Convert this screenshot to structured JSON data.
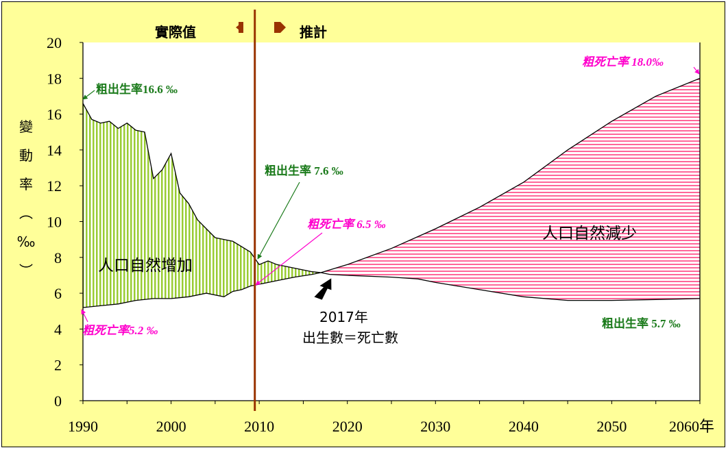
{
  "chart_data": {
    "type": "area",
    "xlim": [
      1990,
      2060
    ],
    "ylim": [
      0,
      20
    ],
    "x_ticks": [
      "1990",
      "2000",
      "2010",
      "2020",
      "2030",
      "2040",
      "2050",
      "2060"
    ],
    "x_unit": "年",
    "y_ticks": [
      "0",
      "2",
      "4",
      "6",
      "8",
      "10",
      "12",
      "14",
      "16",
      "18",
      "20"
    ],
    "ylabel": [
      "變",
      "動",
      "率",
      "︵",
      "‰",
      "︶"
    ],
    "legend": {
      "actual": "實際值",
      "projected": "推計"
    },
    "divider_year": 2009.5,
    "series": [
      {
        "name": "粗出生率",
        "x": [
          1990,
          1991,
          1992,
          1993,
          1994,
          1995,
          1996,
          1997,
          1998,
          1999,
          2000,
          2001,
          2002,
          2003,
          2004,
          2005,
          2006,
          2007,
          2008,
          2009,
          2010,
          2011,
          2012,
          2013,
          2014,
          2015,
          2016,
          2017,
          2018,
          2020,
          2025,
          2028,
          2030,
          2035,
          2040,
          2045,
          2050,
          2055,
          2060
        ],
        "values": [
          16.6,
          15.7,
          15.5,
          15.6,
          15.2,
          15.5,
          15.1,
          15.0,
          12.4,
          12.9,
          13.8,
          11.6,
          11.0,
          10.1,
          9.6,
          9.1,
          9.0,
          8.9,
          8.6,
          8.3,
          7.6,
          7.8,
          7.6,
          7.5,
          7.4,
          7.3,
          7.2,
          7.15,
          7.05,
          7.0,
          6.9,
          6.8,
          6.6,
          6.2,
          5.8,
          5.6,
          5.6,
          5.65,
          5.7
        ]
      },
      {
        "name": "粗死亡率",
        "x": [
          1990,
          1992,
          1994,
          1996,
          1998,
          2000,
          2002,
          2004,
          2006,
          2007,
          2008,
          2009,
          2010,
          2012,
          2014,
          2016,
          2017,
          2020,
          2025,
          2030,
          2035,
          2040,
          2045,
          2050,
          2055,
          2060
        ],
        "values": [
          5.2,
          5.3,
          5.4,
          5.6,
          5.7,
          5.7,
          5.8,
          6.0,
          5.8,
          6.1,
          6.2,
          6.4,
          6.5,
          6.7,
          6.9,
          7.05,
          7.15,
          7.6,
          8.5,
          9.6,
          10.8,
          12.2,
          14.0,
          15.6,
          17.0,
          18.0
        ]
      }
    ],
    "annotations": {
      "birth_1990": "粗出生率16.6 ‰",
      "death_1990": "粗死亡率5.2 ‰",
      "birth_2010": "粗出生率 7.6 ‰",
      "death_2010": "粗死亡率 6.5 ‰",
      "death_2060": "粗死亡率 18.0‰",
      "birth_2060": "粗出生率 5.7 ‰",
      "increase_region": "人口自然增加",
      "decrease_region": "人口自然減少",
      "crossover_year": "2017年",
      "crossover_text": "出生數＝死亡數"
    },
    "colors": {
      "frame_bg": "#ffff99",
      "increase_fill": "#99cc33",
      "decrease_fill": "#ff6699",
      "divider": "#993300",
      "birth_label": "#1a7a1a",
      "death_label": "#ff00cc"
    }
  }
}
